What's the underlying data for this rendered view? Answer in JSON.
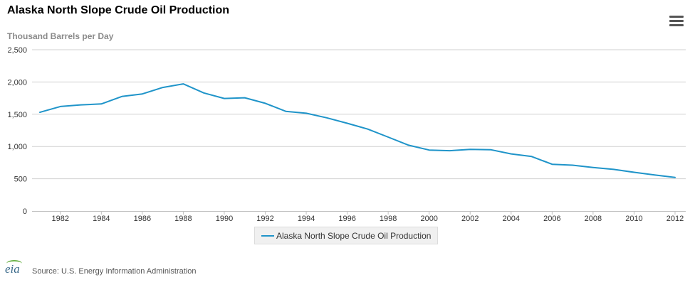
{
  "title": "Alaska North Slope Crude Oil Production",
  "unit_label": "Thousand Barrels per Day",
  "source": "Source: U.S. Energy Information Administration",
  "logo_text": "eia",
  "colors": {
    "series": "#1f94c9",
    "grid": "#d0d0d0",
    "axis": "#c0c0c0"
  },
  "chart_data": {
    "type": "line",
    "title": "Alaska North Slope Crude Oil Production",
    "ylabel": "Thousand Barrels per Day",
    "xlabel": "",
    "ylim": [
      0,
      2500
    ],
    "xlim": [
      1981,
      2012
    ],
    "y_ticks": [
      "0",
      "500",
      "1,000",
      "1,500",
      "2,000",
      "2,500"
    ],
    "y_tick_values": [
      0,
      500,
      1000,
      1500,
      2000,
      2500
    ],
    "x_ticks": [
      "1982",
      "1984",
      "1986",
      "1988",
      "1990",
      "1992",
      "1994",
      "1996",
      "1998",
      "2000",
      "2002",
      "2004",
      "2006",
      "2008",
      "2010",
      "2012"
    ],
    "x_tick_values": [
      1982,
      1984,
      1986,
      1988,
      1990,
      1992,
      1994,
      1996,
      1998,
      2000,
      2002,
      2004,
      2006,
      2008,
      2010,
      2012
    ],
    "grid": true,
    "legend_position": "bottom-center",
    "series": [
      {
        "name": "Alaska North Slope Crude Oil Production",
        "x": [
          1981,
          1982,
          1983,
          1984,
          1985,
          1986,
          1987,
          1988,
          1989,
          1990,
          1991,
          1992,
          1993,
          1994,
          1995,
          1996,
          1997,
          1998,
          1999,
          2000,
          2001,
          2002,
          2003,
          2004,
          2005,
          2006,
          2007,
          2008,
          2009,
          2010,
          2011,
          2012
        ],
        "values": [
          1530,
          1620,
          1645,
          1660,
          1775,
          1815,
          1915,
          1970,
          1830,
          1745,
          1755,
          1670,
          1545,
          1515,
          1445,
          1360,
          1270,
          1145,
          1020,
          945,
          935,
          955,
          950,
          885,
          845,
          725,
          710,
          675,
          645,
          600,
          560,
          520
        ]
      }
    ]
  }
}
